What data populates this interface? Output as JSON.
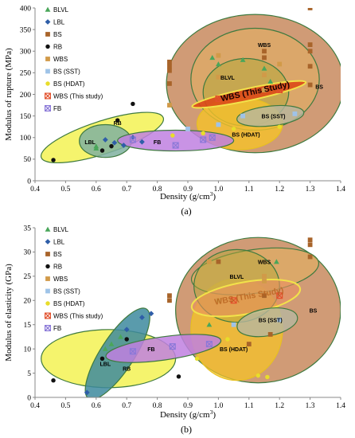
{
  "colors": {
    "BLVL": "#4aa65a",
    "LBL": "#2f5ea8",
    "BS": "#a8642a",
    "RB": "#111111",
    "WBS": "#d19a48",
    "BS (SST)": "#9fc3e8",
    "BS (HDAT)": "#e8dd2a",
    "WBS (This study)": "#e2502c",
    "FB": "#8a78d8"
  },
  "legend": [
    {
      "key": "BLVL",
      "label": "BLVL",
      "marker": "triangle"
    },
    {
      "key": "LBL",
      "label": "LBL",
      "marker": "diamond"
    },
    {
      "key": "BS",
      "label": "BS",
      "marker": "square"
    },
    {
      "key": "RB",
      "label": "RB",
      "marker": "circle"
    },
    {
      "key": "WBS",
      "label": "WBS",
      "marker": "square"
    },
    {
      "key": "BS (SST)",
      "label": "BS (SST)",
      "marker": "square"
    },
    {
      "key": "BS (HDAT)",
      "label": "BS (HDAT)",
      "marker": "circle"
    },
    {
      "key": "WBS (This study)",
      "label": "WBS (This study)",
      "marker": "xsquare"
    },
    {
      "key": "FB",
      "label": "FB",
      "marker": "xsquare"
    }
  ],
  "chart_data": [
    {
      "type": "scatter",
      "panel_label": "(a)",
      "xlabel": "Density (g/cm³)",
      "ylabel": "Modulus of rupture (MPa)",
      "xlim": [
        0.4,
        1.4
      ],
      "ylim": [
        0,
        400
      ],
      "xticks": [
        "0.4",
        "0.5",
        "0.6",
        "0.7",
        "0.8",
        "0.9",
        "1.0",
        "1.1",
        "1.2",
        "1.3",
        "1.4"
      ],
      "yticks": [
        "0",
        "50",
        "100",
        "150",
        "200",
        "250",
        "300",
        "350",
        "400"
      ],
      "grid": false,
      "legend_position": "top-left",
      "regions": [
        {
          "label": "BS",
          "series": "BS",
          "cx": 1.12,
          "cy": 225,
          "rx": 0.29,
          "ry": 160,
          "angle": 0,
          "fill": "#c07a48",
          "opacity": 0.75,
          "label_at": [
            1.33,
            218
          ]
        },
        {
          "label": "WBS",
          "series": "WBS",
          "cx": 1.12,
          "cy": 235,
          "rx": 0.21,
          "ry": 118,
          "angle": 0,
          "fill": "#e3b060",
          "opacity": 0.55,
          "label_at": [
            1.15,
            315
          ]
        },
        {
          "label": "BLVL",
          "series": "BLVL",
          "cx": 1.09,
          "cy": 205,
          "rx": 0.14,
          "ry": 78,
          "angle": 0,
          "fill": "#b5a83a",
          "opacity": 0.55,
          "label_at": [
            1.03,
            240
          ]
        },
        {
          "label": "BS (HDAT)",
          "series": "BS (HDAT)",
          "cx": 1.07,
          "cy": 132,
          "rx": 0.14,
          "ry": 60,
          "angle": 0,
          "fill": "#f5c22a",
          "opacity": 0.8,
          "label_at": [
            1.09,
            108
          ]
        },
        {
          "label": "BS (SST)",
          "series": "BS (SST)",
          "cx": 1.17,
          "cy": 150,
          "rx": 0.11,
          "ry": 23,
          "angle": -6,
          "fill": "#b7b7a0",
          "opacity": 0.8,
          "label_at": [
            1.18,
            150
          ]
        },
        {
          "label": "WBS (This Study)",
          "series": "WBS (This study)",
          "cx": 1.1,
          "cy": 200,
          "rx": 0.19,
          "ry": 14,
          "angle": -12,
          "fill": "#dc4a18",
          "opacity": 0.9,
          "label_at": [
            1.12,
            208
          ],
          "big": true
        },
        {
          "label": "RB",
          "series": "RB",
          "cx": 0.62,
          "cy": 100,
          "rx": 0.21,
          "ry": 38,
          "angle": -18,
          "fill": "#f2f03c",
          "opacity": 0.75,
          "label_at": [
            0.67,
            135
          ]
        },
        {
          "label": "LBL",
          "series": "LBL",
          "cx": 0.63,
          "cy": 92,
          "rx": 0.085,
          "ry": 38,
          "angle": 0,
          "fill": "#7fb0a0",
          "opacity": 0.85,
          "label_at": [
            0.58,
            90
          ]
        },
        {
          "label": "FB",
          "series": "FB",
          "cx": 0.86,
          "cy": 93,
          "rx": 0.19,
          "ry": 24,
          "angle": 0,
          "fill": "#c080e0",
          "opacity": 0.85,
          "label_at": [
            0.8,
            90
          ]
        }
      ],
      "series": [
        {
          "name": "RB",
          "marker": "circle",
          "points": [
            [
              0.46,
              48
            ],
            [
              0.62,
              70
            ],
            [
              0.65,
              80
            ],
            [
              0.72,
              178
            ],
            [
              0.67,
              140
            ]
          ]
        },
        {
          "name": "LBL",
          "marker": "diamond",
          "points": [
            [
              0.63,
              95
            ],
            [
              0.66,
              88
            ],
            [
              0.69,
              82
            ],
            [
              0.72,
              100
            ],
            [
              0.75,
              90
            ]
          ]
        },
        {
          "name": "BLVL",
          "marker": "triangle",
          "points": [
            [
              0.6,
              80
            ],
            [
              0.6,
              75
            ],
            [
              0.98,
              285
            ],
            [
              1.0,
              270
            ],
            [
              1.08,
              280
            ],
            [
              1.15,
              260
            ],
            [
              1.17,
              230
            ]
          ]
        },
        {
          "name": "BS",
          "marker": "square",
          "points": [
            [
              0.84,
              255
            ],
            [
              0.84,
              265
            ],
            [
              0.84,
              275
            ],
            [
              0.84,
              225
            ],
            [
              1.15,
              285
            ],
            [
              1.15,
              300
            ],
            [
              1.3,
              400
            ],
            [
              1.3,
              315
            ],
            [
              1.3,
              300
            ],
            [
              1.3,
              265
            ],
            [
              1.3,
              222
            ]
          ]
        },
        {
          "name": "WBS",
          "marker": "square",
          "points": [
            [
              0.84,
              175
            ],
            [
              1.0,
              290
            ],
            [
              1.0,
              240
            ],
            [
              1.15,
              245
            ],
            [
              1.15,
              210
            ],
            [
              1.2,
              270
            ]
          ]
        },
        {
          "name": "BS (SST)",
          "marker": "square",
          "points": [
            [
              0.9,
              120
            ],
            [
              1.0,
              130
            ],
            [
              1.08,
              150
            ],
            [
              1.25,
              155
            ]
          ]
        },
        {
          "name": "BS (HDAT)",
          "marker": "circle",
          "points": [
            [
              0.85,
              105
            ],
            [
              0.95,
              110
            ],
            [
              1.05,
              120
            ],
            [
              1.2,
              125
            ]
          ]
        },
        {
          "name": "WBS (This study)",
          "marker": "xsquare",
          "points": [
            [
              1.0,
              190
            ],
            [
              1.2,
              210
            ]
          ]
        },
        {
          "name": "FB",
          "marker": "xsquare",
          "points": [
            [
              0.72,
              95
            ],
            [
              0.86,
              82
            ],
            [
              0.95,
              95
            ],
            [
              0.98,
              100
            ]
          ]
        }
      ]
    },
    {
      "type": "scatter",
      "panel_label": "(b)",
      "xlabel": "Density (g/cm³)",
      "ylabel": "Modulus of elasticity (GPa)",
      "xlim": [
        0.4,
        1.4
      ],
      "ylim": [
        0,
        35
      ],
      "xticks": [
        "0.4",
        "0.5",
        "0.6",
        "0.7",
        "0.8",
        "0.9",
        "1.0",
        "1.1",
        "1.2",
        "1.3",
        "1.4"
      ],
      "yticks": [
        "0",
        "5",
        "10",
        "15",
        "20",
        "25",
        "30",
        "35"
      ],
      "grid": false,
      "legend_position": "top-left",
      "regions": [
        {
          "label": "BS",
          "series": "BS",
          "cx": 1.13,
          "cy": 18,
          "rx": 0.27,
          "ry": 15,
          "angle": 0,
          "fill": "#c07a48",
          "opacity": 0.75,
          "label_at": [
            1.31,
            18
          ]
        },
        {
          "label": "BS (HDAT)",
          "series": "BS (HDAT)",
          "cx": 1.06,
          "cy": 14,
          "rx": 0.15,
          "ry": 10.5,
          "angle": 0,
          "fill": "#f5c22a",
          "opacity": 0.75,
          "label_at": [
            1.05,
            10
          ]
        },
        {
          "label": "WBS",
          "series": "WBS",
          "cx": 1.12,
          "cy": 26,
          "rx": 0.21,
          "ry": 4.5,
          "angle": -8,
          "fill": "#e3b060",
          "opacity": 0.6,
          "label_at": [
            1.15,
            28
          ]
        },
        {
          "label": "BLVL",
          "series": "BLVL",
          "cx": 1.06,
          "cy": 23,
          "rx": 0.14,
          "ry": 7.5,
          "angle": 0,
          "fill": "#b5a83a",
          "opacity": 0.5,
          "label_at": [
            1.06,
            25
          ]
        },
        {
          "label": "WBS (This Study)",
          "series": "WBS (This study)",
          "cx": 1.09,
          "cy": 20.5,
          "rx": 0.18,
          "ry": 3.3,
          "angle": -10,
          "fill": "#ea9060",
          "opacity": 0.6,
          "label_at": [
            1.1,
            21
          ],
          "big": true
        },
        {
          "label": "BS (SST)",
          "series": "BS (SST)",
          "cx": 1.16,
          "cy": 15.5,
          "rx": 0.1,
          "ry": 2.8,
          "angle": -10,
          "fill": "#b7b7a0",
          "opacity": 0.8,
          "label_at": [
            1.17,
            16
          ]
        },
        {
          "label": "RB",
          "series": "RB",
          "cx": 0.64,
          "cy": 8,
          "rx": 0.22,
          "ry": 6,
          "angle": 0,
          "fill": "#f2f03c",
          "opacity": 0.75,
          "label_at": [
            0.7,
            6
          ]
        },
        {
          "label": "LBL",
          "series": "LBL",
          "cx": 0.67,
          "cy": 9,
          "rx": 0.055,
          "ry": 11,
          "angle": 33,
          "fill": "#3d8a9e",
          "opacity": 0.85,
          "label_at": [
            0.63,
            7
          ]
        },
        {
          "label": "FB",
          "series": "FB",
          "cx": 0.82,
          "cy": 10.1,
          "rx": 0.19,
          "ry": 2.4,
          "angle": -8,
          "fill": "#c080e0",
          "opacity": 0.85,
          "label_at": [
            0.78,
            10
          ]
        }
      ],
      "series": [
        {
          "name": "RB",
          "marker": "circle",
          "points": [
            [
              0.46,
              3.5
            ],
            [
              0.87,
              4.3
            ],
            [
              0.62,
              8
            ],
            [
              0.7,
              12
            ]
          ]
        },
        {
          "name": "LBL",
          "marker": "diamond",
          "points": [
            [
              0.57,
              1
            ],
            [
              0.75,
              16.5
            ],
            [
              0.78,
              17.3
            ],
            [
              0.7,
              14
            ]
          ]
        },
        {
          "name": "BLVL",
          "marker": "triangle",
          "points": [
            [
              0.63,
              10
            ],
            [
              0.65,
              11
            ],
            [
              0.68,
              12.5
            ],
            [
              0.97,
              15
            ],
            [
              1.19,
              28
            ]
          ]
        },
        {
          "name": "BS",
          "marker": "square",
          "points": [
            [
              0.84,
              20
            ],
            [
              0.84,
              21
            ],
            [
              1.0,
              28
            ],
            [
              1.15,
              21
            ],
            [
              1.3,
              32.5
            ],
            [
              1.3,
              31.5
            ],
            [
              1.3,
              29
            ],
            [
              1.17,
              13
            ],
            [
              1.1,
              11
            ]
          ]
        },
        {
          "name": "WBS",
          "marker": "square",
          "points": [
            [
              0.97,
              28
            ],
            [
              1.0,
              20
            ],
            [
              1.15,
              24
            ],
            [
              1.15,
              25
            ]
          ]
        },
        {
          "name": "BS (SST)",
          "marker": "square",
          "points": [
            [
              1.05,
              15
            ],
            [
              1.2,
              16
            ]
          ]
        },
        {
          "name": "BS (HDAT)",
          "marker": "circle",
          "points": [
            [
              0.93,
              8
            ],
            [
              1.03,
              12
            ],
            [
              1.13,
              4.5
            ],
            [
              1.16,
              4.2
            ]
          ]
        },
        {
          "name": "WBS (This study)",
          "marker": "xsquare",
          "points": [
            [
              1.05,
              20
            ],
            [
              1.2,
              21
            ]
          ]
        },
        {
          "name": "FB",
          "marker": "xsquare",
          "points": [
            [
              0.72,
              9.5
            ],
            [
              0.85,
              10.5
            ],
            [
              0.97,
              11
            ]
          ]
        }
      ]
    }
  ]
}
